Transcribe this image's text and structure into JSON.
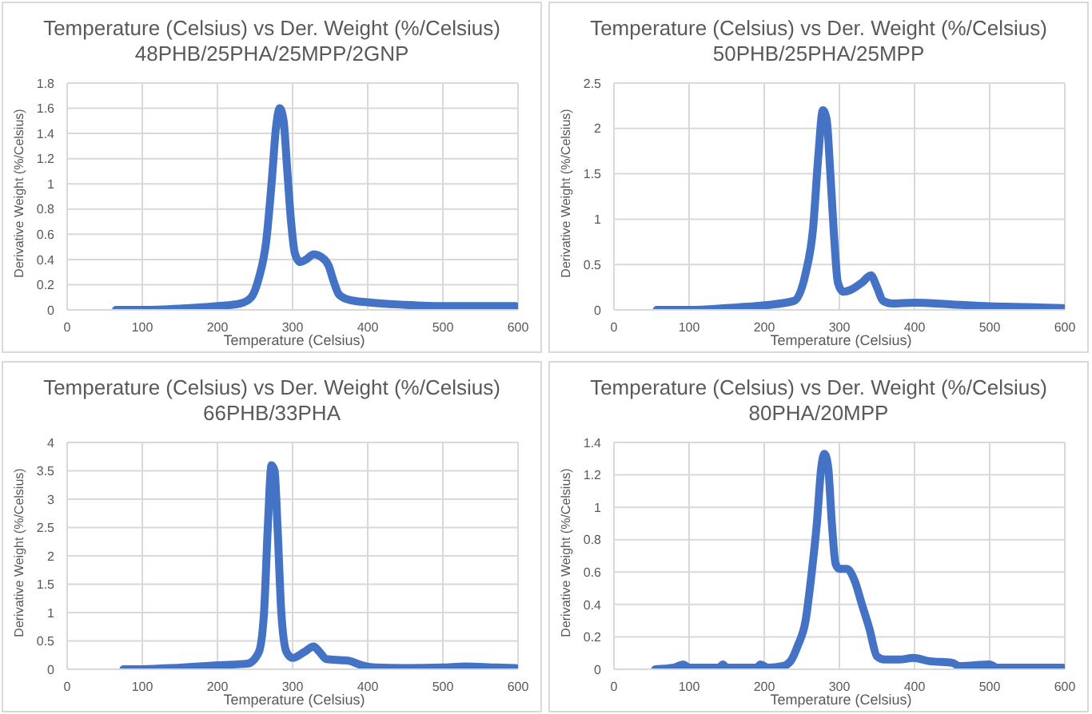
{
  "chart_data": [
    {
      "type": "line",
      "title": "Temperature  (Celsius) vs Der. Weight (%/Celsius)",
      "subtitle": "48PHB/25PHA/25MPP/2GNP",
      "xlabel": "Temperature (Celsius)",
      "ylabel": "Derivative Weight (%/Celsius)",
      "xlim": [
        0,
        600
      ],
      "xticks": [
        0,
        100,
        200,
        300,
        400,
        500,
        600
      ],
      "ylim": [
        0,
        1.8
      ],
      "yticks": [
        0,
        0.2,
        0.4,
        0.6,
        0.8,
        1,
        1.2,
        1.4,
        1.6,
        1.8
      ],
      "grid": true,
      "color": "#4472c4",
      "x": [
        65,
        100,
        150,
        200,
        230,
        245,
        255,
        265,
        272,
        278,
        283,
        288,
        293,
        298,
        303,
        310,
        318,
        328,
        338,
        348,
        355,
        362,
        375,
        400,
        450,
        500,
        550,
        597
      ],
      "values": [
        0,
        0,
        0.01,
        0.03,
        0.05,
        0.1,
        0.25,
        0.55,
        1.0,
        1.45,
        1.6,
        1.5,
        1.1,
        0.7,
        0.45,
        0.38,
        0.4,
        0.44,
        0.42,
        0.35,
        0.22,
        0.12,
        0.08,
        0.06,
        0.04,
        0.03,
        0.03,
        0.03
      ]
    },
    {
      "type": "line",
      "title": "Temperature  (Celsius) vs Der. Weight (%/Celsius)",
      "subtitle": "50PHB/25PHA/25MPP",
      "xlabel": "Temperature (Celsius)",
      "ylabel": "Derivative Weight (%/Celsius)",
      "xlim": [
        0,
        600
      ],
      "xticks": [
        0,
        100,
        200,
        300,
        400,
        500,
        600
      ],
      "ylim": [
        0,
        2.5
      ],
      "yticks": [
        0,
        0.5,
        1,
        1.5,
        2,
        2.5
      ],
      "grid": true,
      "color": "#4472c4",
      "x": [
        57,
        100,
        150,
        200,
        240,
        255,
        265,
        272,
        278,
        283,
        288,
        293,
        298,
        305,
        315,
        330,
        342,
        350,
        358,
        370,
        400,
        450,
        500,
        550,
        597
      ],
      "values": [
        0,
        0,
        0.02,
        0.05,
        0.1,
        0.4,
        0.9,
        1.7,
        2.2,
        2.1,
        1.5,
        0.8,
        0.3,
        0.2,
        0.22,
        0.3,
        0.38,
        0.25,
        0.1,
        0.07,
        0.08,
        0.06,
        0.04,
        0.03,
        0.02
      ]
    },
    {
      "type": "line",
      "title": "Temperature  (Celsius) vs Der. Weight (%/Celsius)",
      "subtitle": "66PHB/33PHA",
      "xlabel": "Temperature (Celsius)",
      "ylabel": "Derivative Weight (%/Celsius)",
      "xlim": [
        0,
        600
      ],
      "xticks": [
        0,
        100,
        200,
        300,
        400,
        500,
        600
      ],
      "ylim": [
        0,
        4
      ],
      "yticks": [
        0,
        0.5,
        1,
        1.5,
        2,
        2.5,
        3,
        3.5,
        4
      ],
      "grid": true,
      "color": "#4472c4",
      "x": [
        75,
        100,
        150,
        200,
        240,
        255,
        262,
        267,
        272,
        276,
        280,
        285,
        292,
        300,
        315,
        328,
        335,
        345,
        365,
        375,
        390,
        410,
        450,
        500,
        530,
        570,
        597
      ],
      "values": [
        0,
        0,
        0.03,
        0.07,
        0.1,
        0.3,
        1.0,
        2.5,
        3.6,
        3.5,
        2.5,
        1.0,
        0.3,
        0.2,
        0.3,
        0.4,
        0.32,
        0.18,
        0.16,
        0.15,
        0.08,
        0.03,
        0.02,
        0.03,
        0.05,
        0.03,
        0.02
      ]
    },
    {
      "type": "line",
      "title": "Temperature  (Celsius) vs Der. Weight (%/Celsius)",
      "subtitle": "80PHA/20MPP",
      "xlabel": "Temperature (Celsius)",
      "ylabel": "Derivative Weight (%/Celsius)",
      "xlim": [
        0,
        600
      ],
      "xticks": [
        0,
        100,
        200,
        300,
        400,
        500,
        600
      ],
      "ylim": [
        0,
        1.4
      ],
      "yticks": [
        0,
        0.2,
        0.4,
        0.6,
        0.8,
        1,
        1.2,
        1.4
      ],
      "grid": true,
      "color": "#4472c4",
      "x": [
        55,
        80,
        92,
        100,
        140,
        145,
        150,
        190,
        195,
        205,
        225,
        235,
        245,
        255,
        262,
        270,
        276,
        280,
        285,
        290,
        295,
        300,
        310,
        320,
        330,
        340,
        350,
        360,
        380,
        398,
        420,
        450,
        460,
        500,
        510,
        550,
        597
      ],
      "values": [
        0,
        0.01,
        0.03,
        0.01,
        0.01,
        0.03,
        0.01,
        0.01,
        0.03,
        0.01,
        0.02,
        0.05,
        0.15,
        0.3,
        0.55,
        0.9,
        1.25,
        1.33,
        1.25,
        0.9,
        0.65,
        0.62,
        0.62,
        0.55,
        0.4,
        0.25,
        0.08,
        0.06,
        0.06,
        0.07,
        0.05,
        0.04,
        0.02,
        0.03,
        0.01,
        0.01,
        0.01
      ]
    }
  ]
}
